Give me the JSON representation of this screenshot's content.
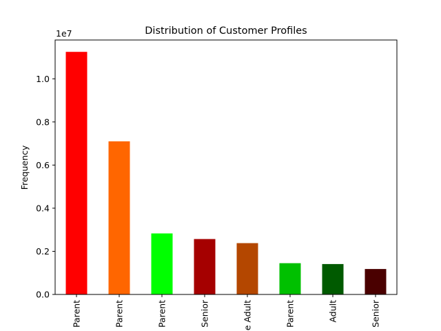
{
  "chart_data": {
    "type": "bar",
    "title": "Distribution of Customer Profiles",
    "xlabel": "",
    "ylabel": "Frequency",
    "offset_label": "1e7",
    "ylim": [
      0,
      11800000
    ],
    "yticks": [
      0,
      2000000,
      4000000,
      6000000,
      8000000,
      10000000
    ],
    "ytick_labels": [
      "0.0",
      "0.2",
      "0.4",
      "0.6",
      "0.8",
      "1.0"
    ],
    "categories": [
      "Parent",
      "Parent",
      "Parent",
      "Senior",
      "Adult",
      "Parent",
      "Adult",
      "Senior"
    ],
    "category_labels_visible": [
      "Parent",
      "Parent",
      "Parent",
      "Senior",
      "e Adult",
      "Parent",
      "Adult",
      "Senior"
    ],
    "values": [
      11250000,
      7100000,
      2830000,
      2570000,
      2380000,
      1450000,
      1410000,
      1180000
    ],
    "colors": [
      "#ff0000",
      "#ff6600",
      "#00ff00",
      "#a50000",
      "#b44700",
      "#00c000",
      "#005a00",
      "#4a0000"
    ],
    "grid": false,
    "legend": "none"
  }
}
